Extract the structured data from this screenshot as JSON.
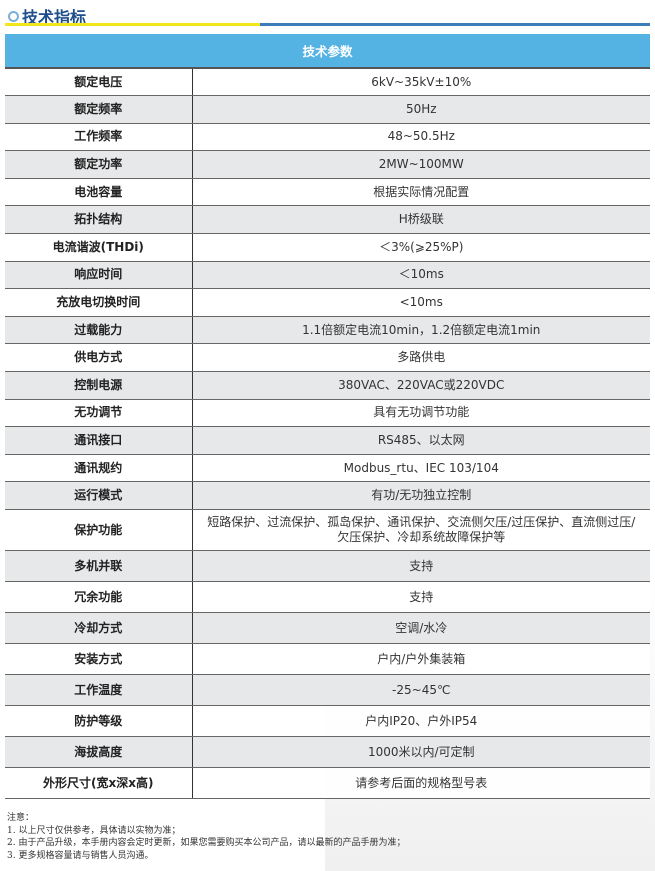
{
  "heading": "技术指标",
  "colors": {
    "header": "#55b3e4",
    "rule_yellow": "#f4e61e",
    "rule_blue": "#3b7db8",
    "stripe": "#e5e6e8"
  },
  "table": {
    "header": "技术参数",
    "rows": [
      {
        "k": "额定电压",
        "v": "6kV~35kV±10%"
      },
      {
        "k": "额定频率",
        "v": "50Hz"
      },
      {
        "k": "工作频率",
        "v": "48~50.5Hz"
      },
      {
        "k": "额定功率",
        "v": "2MW~100MW"
      },
      {
        "k": "电池容量",
        "v": "根据实际情况配置"
      },
      {
        "k": "拓扑结构",
        "v": "H桥级联"
      },
      {
        "k": "电流谐波(THDi)",
        "v": "＜3%(⩾25%P)"
      },
      {
        "k": "响应时间",
        "v": "＜10ms"
      },
      {
        "k": "充放电切换时间",
        "v": "<10ms"
      },
      {
        "k": "过载能力",
        "v": "1.1倍额定电流10min，1.2倍额定电流1min"
      },
      {
        "k": "供电方式",
        "v": "多路供电"
      },
      {
        "k": "控制电源",
        "v": "380VAC、220VAC或220VDC"
      },
      {
        "k": "无功调节",
        "v": "具有无功调节功能"
      },
      {
        "k": "通讯接口",
        "v": "RS485、以太网"
      },
      {
        "k": "通讯规约",
        "v": "Modbus_rtu、IEC 103/104"
      },
      {
        "k": "运行模式",
        "v": "有功/无功独立控制"
      },
      {
        "k": "保护功能",
        "v": "短路保护、过流保护、孤岛保护、通讯保护、交流侧欠压/过压保护、直流侧过压/",
        "v2": "欠压保护、冷却系统故障保护等"
      },
      {
        "k": "多机并联",
        "v": "支持"
      },
      {
        "k": "冗余功能",
        "v": "支持"
      },
      {
        "k": "冷却方式",
        "v": "空调/水冷"
      },
      {
        "k": "安装方式",
        "v": "户内/户外集装箱"
      },
      {
        "k": "工作温度",
        "v": "-25~45℃"
      },
      {
        "k": "防护等级",
        "v": "户内IP20、户外IP54"
      },
      {
        "k": "海拔高度",
        "v": "1000米以内/可定制"
      },
      {
        "k": "外形尺寸(宽x深x高)",
        "v": "请参考后面的规格型号表"
      }
    ]
  },
  "notes": [
    "注意：",
    "1. 以上尺寸仅供参考，具体请以实物为准；",
    "2. 由于产品升级，本手册内容会定时更新，如果您需要购买本公司产品，请以最新的产品手册为准；",
    "3. 更多规格容量请与销售人员沟通。"
  ]
}
